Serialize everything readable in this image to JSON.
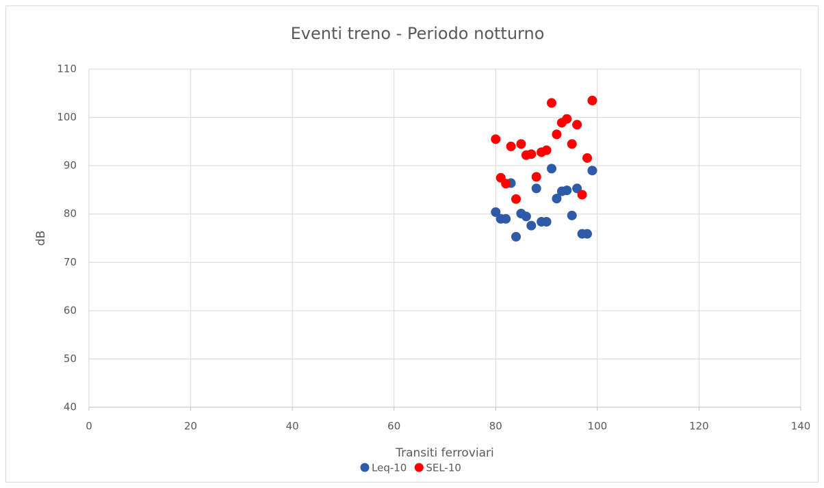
{
  "chart_data": {
    "type": "scatter",
    "title": "Eventi treno - Periodo notturno",
    "x_label": "Transiti ferroviari",
    "y_label": "dB",
    "xlim": [
      0,
      140
    ],
    "xticks": [
      0,
      20,
      40,
      60,
      80,
      100,
      120,
      140
    ],
    "ylim": [
      40,
      110
    ],
    "yticks": [
      40,
      50,
      60,
      70,
      80,
      90,
      100,
      110
    ],
    "grid": true,
    "legend": "bottom",
    "series": [
      {
        "name": "Leq-10",
        "color": "#2e5aa8",
        "x": [
          80,
          81,
          82,
          83,
          84,
          85,
          86,
          87,
          88,
          89,
          90,
          91,
          92,
          93,
          94,
          95,
          96,
          97,
          98,
          99
        ],
        "values": [
          80.4,
          79,
          79,
          86.4,
          75.3,
          80.1,
          79.5,
          77.6,
          85.3,
          78.4,
          78.4,
          89.4,
          83.2,
          84.7,
          84.9,
          79.7,
          85.3,
          75.9,
          75.9,
          89
        ]
      },
      {
        "name": "SEL-10",
        "color": "#ff0000",
        "x": [
          80,
          81,
          82,
          83,
          84,
          85,
          86,
          87,
          88,
          89,
          90,
          91,
          92,
          93,
          94,
          95,
          96,
          97,
          98,
          99
        ],
        "values": [
          95.5,
          87.5,
          86.3,
          94,
          83.1,
          94.5,
          92.2,
          92.4,
          87.7,
          92.8,
          93.2,
          103,
          96.5,
          98.9,
          99.7,
          94.5,
          98.5,
          84,
          91.6,
          103.5
        ]
      }
    ]
  }
}
